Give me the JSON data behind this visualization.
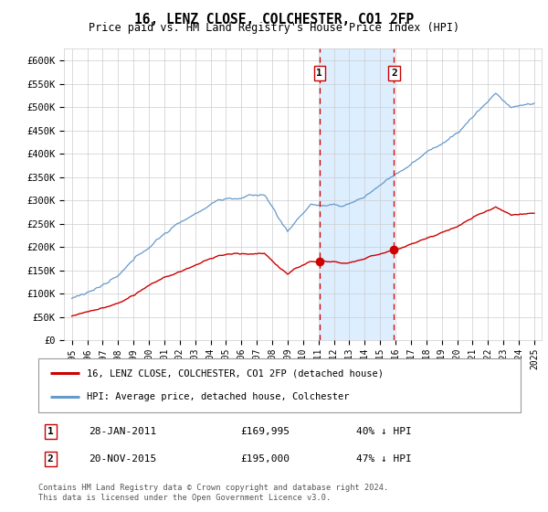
{
  "title": "16, LENZ CLOSE, COLCHESTER, CO1 2FP",
  "subtitle": "Price paid vs. HM Land Registry's House Price Index (HPI)",
  "ylim": [
    0,
    625000
  ],
  "yticks": [
    0,
    50000,
    100000,
    150000,
    200000,
    250000,
    300000,
    350000,
    400000,
    450000,
    500000,
    550000,
    600000
  ],
  "ytick_labels": [
    "£0",
    "£50K",
    "£100K",
    "£150K",
    "£200K",
    "£250K",
    "£300K",
    "£350K",
    "£400K",
    "£450K",
    "£500K",
    "£550K",
    "£600K"
  ],
  "xlim_start": 1994.5,
  "xlim_end": 2025.5,
  "event1_x": 2011.07,
  "event2_x": 2015.9,
  "event1_label": "1",
  "event2_label": "2",
  "event1_price": "£169,995",
  "event1_date": "28-JAN-2011",
  "event1_pct": "40% ↓ HPI",
  "event2_price": "£195,000",
  "event2_date": "20-NOV-2015",
  "event2_pct": "47% ↓ HPI",
  "legend_line1": "16, LENZ CLOSE, COLCHESTER, CO1 2FP (detached house)",
  "legend_line2": "HPI: Average price, detached house, Colchester",
  "footer": "Contains HM Land Registry data © Crown copyright and database right 2024.\nThis data is licensed under the Open Government Licence v3.0.",
  "line1_color": "#cc0000",
  "line2_color": "#6699cc",
  "shade_color": "#ddeeff",
  "grid_color": "#cccccc",
  "bg_color": "#ffffff",
  "title_fontsize": 10.5,
  "subtitle_fontsize": 8.5
}
